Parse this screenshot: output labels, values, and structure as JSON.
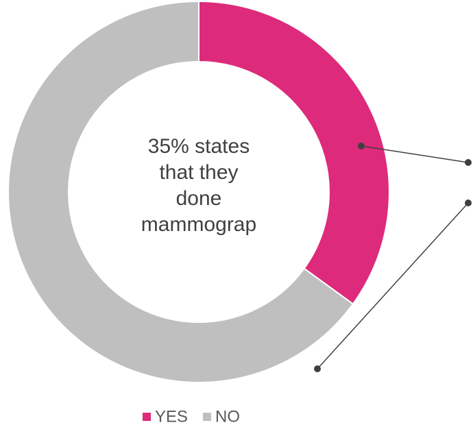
{
  "chart_data": {
    "type": "donut",
    "categories": [
      "YES",
      "NO"
    ],
    "values": [
      35,
      65
    ],
    "colors": [
      "#dd2a7b",
      "#bfbfbf"
    ],
    "annotation": [
      "35% states",
      "that they",
      "done",
      "mammograp"
    ],
    "legend": "bottom"
  }
}
